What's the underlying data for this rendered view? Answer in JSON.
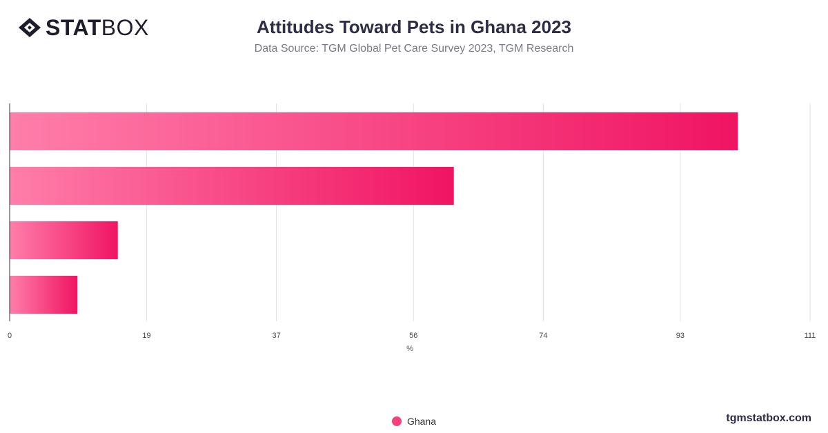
{
  "brand": {
    "logo_bold": "STAT",
    "logo_light": "BOX",
    "website": "tgmstatbox.com"
  },
  "header": {
    "title": "Attitudes Toward Pets in Ghana 2023",
    "subtitle": "Data Source: TGM Global Pet Care Survey 2023, TGM Research"
  },
  "colors": {
    "bar_start": "#ff7eaa",
    "bar_end": "#f01462",
    "grid": "#e2e2e2",
    "axis": "#333333"
  },
  "chart_data": {
    "type": "bar",
    "orientation": "horizontal",
    "categories": [
      "",
      "",
      "",
      ""
    ],
    "series": [
      {
        "name": "Ghana",
        "values": [
          101,
          61.6,
          15,
          9.4
        ]
      }
    ],
    "xlim": [
      0,
      111
    ],
    "xticks": [
      0,
      19,
      37,
      56,
      74,
      93,
      111
    ],
    "xlabel": "%",
    "ylabel": "",
    "grid": true,
    "legend": "bottom-center"
  }
}
